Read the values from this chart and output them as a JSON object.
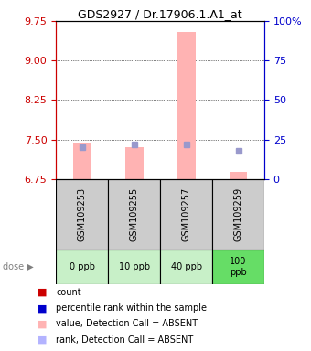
{
  "title": "GDS2927 / Dr.17906.1.A1_at",
  "samples": [
    "GSM109253",
    "GSM109255",
    "GSM109257",
    "GSM109259"
  ],
  "doses": [
    "0 ppb",
    "10 ppb",
    "40 ppb",
    "100\nppb"
  ],
  "dose_colors": [
    "#c8f0c8",
    "#c8f0c8",
    "#c8f0c8",
    "#66dd66"
  ],
  "value_absent": [
    7.44,
    7.35,
    9.55,
    6.88
  ],
  "rank_absent": [
    20,
    22,
    22,
    18
  ],
  "ylim_left": [
    6.75,
    9.75
  ],
  "yticks_left": [
    6.75,
    7.5,
    8.25,
    9.0,
    9.75
  ],
  "yticks_right": [
    0,
    25,
    50,
    75,
    100
  ],
  "bar_color_absent": "#ffb3b3",
  "rank_color_absent": "#b3b3ff",
  "dot_color_absent_rank": "#9999cc",
  "grid_color": "black",
  "left_axis_color": "#cc0000",
  "right_axis_color": "#0000cc",
  "sample_bg_color": "#cccccc",
  "legend_items": [
    {
      "color": "#cc0000",
      "marker": "s",
      "label": "count"
    },
    {
      "color": "#0000cc",
      "marker": "s",
      "label": "percentile rank within the sample"
    },
    {
      "color": "#ffb3b3",
      "marker": "s",
      "label": "value, Detection Call = ABSENT"
    },
    {
      "color": "#b3b3ff",
      "marker": "s",
      "label": "rank, Detection Call = ABSENT"
    }
  ]
}
